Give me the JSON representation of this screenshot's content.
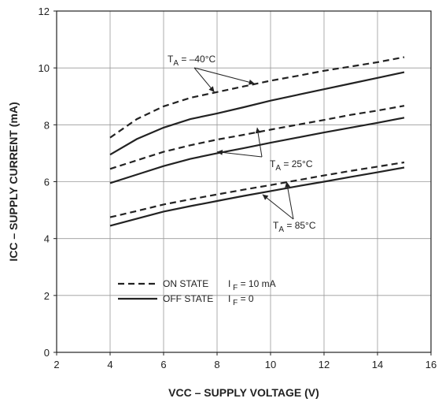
{
  "chart_data": {
    "type": "line",
    "xlabel": "VCC – SUPPLY VOLTAGE (V)",
    "ylabel": "ICC – SUPPLY CURRENT (mA)",
    "xlim": [
      2,
      16
    ],
    "ylim": [
      0,
      12
    ],
    "x_ticks": [
      2,
      4,
      6,
      8,
      10,
      12,
      14,
      16
    ],
    "y_ticks": [
      0,
      2,
      4,
      6,
      8,
      10,
      12
    ],
    "grid": true,
    "legend_position": "bottom-left",
    "series": [
      {
        "group": "TA = -40°C",
        "state": "ON STATE",
        "style": "dashed",
        "x": [
          4,
          5,
          6,
          7,
          8,
          9,
          10,
          11,
          12,
          13,
          14,
          15
        ],
        "y": [
          7.55,
          8.2,
          8.65,
          8.95,
          9.15,
          9.35,
          9.55,
          9.72,
          9.9,
          10.05,
          10.2,
          10.38
        ]
      },
      {
        "group": "TA = -40°C",
        "state": "OFF STATE",
        "style": "solid",
        "x": [
          4,
          5,
          6,
          7,
          8,
          9,
          10,
          11,
          12,
          13,
          14,
          15
        ],
        "y": [
          6.95,
          7.5,
          7.9,
          8.2,
          8.4,
          8.62,
          8.85,
          9.05,
          9.25,
          9.45,
          9.65,
          9.85
        ]
      },
      {
        "group": "TA = 25°C",
        "state": "ON STATE",
        "style": "dashed",
        "x": [
          4,
          5,
          6,
          7,
          8,
          9,
          10,
          11,
          12,
          13,
          14,
          15
        ],
        "y": [
          6.45,
          6.75,
          7.05,
          7.28,
          7.48,
          7.65,
          7.83,
          8.0,
          8.17,
          8.35,
          8.5,
          8.67
        ]
      },
      {
        "group": "TA = 25°C",
        "state": "OFF STATE",
        "style": "solid",
        "x": [
          4,
          5,
          6,
          7,
          8,
          9,
          10,
          11,
          12,
          13,
          14,
          15
        ],
        "y": [
          5.95,
          6.25,
          6.55,
          6.8,
          7.0,
          7.18,
          7.37,
          7.55,
          7.73,
          7.9,
          8.07,
          8.25
        ]
      },
      {
        "group": "TA = 85°C",
        "state": "ON STATE",
        "style": "dashed",
        "x": [
          4,
          5,
          6,
          7,
          8,
          9,
          10,
          11,
          12,
          13,
          14,
          15
        ],
        "y": [
          4.75,
          4.97,
          5.2,
          5.38,
          5.55,
          5.72,
          5.88,
          6.05,
          6.22,
          6.38,
          6.53,
          6.68
        ]
      },
      {
        "group": "TA = 85°C",
        "state": "OFF STATE",
        "style": "solid",
        "x": [
          4,
          5,
          6,
          7,
          8,
          9,
          10,
          11,
          12,
          13,
          14,
          15
        ],
        "y": [
          4.45,
          4.7,
          4.95,
          5.14,
          5.32,
          5.5,
          5.67,
          5.84,
          6.0,
          6.17,
          6.33,
          6.5
        ]
      }
    ],
    "legend": [
      {
        "style": "dashed",
        "label": "ON STATE",
        "condition": "IF = 10 mA"
      },
      {
        "style": "solid",
        "label": "OFF STATE",
        "condition": "IF = 0"
      }
    ],
    "annotations": [
      {
        "label": "TA = –40°C",
        "points_to": [
          [
            7.9,
            9.15
          ],
          [
            9.4,
            9.45
          ]
        ]
      },
      {
        "label": "TA = 25°C",
        "points_to": [
          [
            8.0,
            7.05
          ],
          [
            9.5,
            7.9
          ]
        ]
      },
      {
        "label": "TA = 85°C",
        "points_to": [
          [
            9.7,
            5.55
          ],
          [
            10.6,
            6.0
          ]
        ]
      }
    ],
    "colors": {
      "line": "#222222",
      "grid": "#999999",
      "background": "#ffffff"
    }
  }
}
